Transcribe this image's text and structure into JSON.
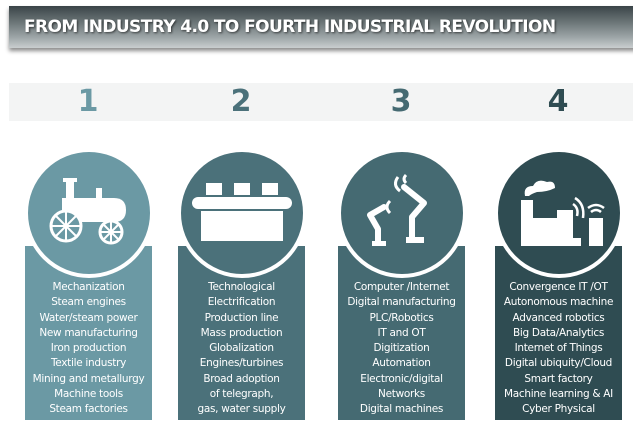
{
  "title": "FROM INDUSTRY 4.0 TO FOURTH INDUSTRIAL REVOLUTION",
  "colors": {
    "stage1": "#6b99a4",
    "stage2": "#4b717a",
    "stage3": "#456a72",
    "stage4": "#2f4c52"
  },
  "stages": [
    {
      "number": "1",
      "icon": "steam-engine-icon",
      "items": [
        "Mechanization",
        "Steam engines",
        "Water/steam power",
        "New manufacturing",
        "Iron production",
        "Textile industry",
        "Mining and metallurgy",
        "Machine tools",
        "Steam factories"
      ]
    },
    {
      "number": "2",
      "icon": "conveyor-belt-icon",
      "items": [
        "Technological",
        "Electrification",
        "Production line",
        "Mass production",
        "Globalization",
        "Engines/turbines",
        "Broad adoption",
        "of telegraph,",
        "gas, water supply"
      ]
    },
    {
      "number": "3",
      "icon": "robotic-arm-icon",
      "items": [
        "Computer /Internet",
        "Digital manufacturing",
        "PLC/Robotics",
        "IT and OT",
        "Digitization",
        "Automation",
        "Electronic/digital",
        "Networks",
        "Digital machines"
      ]
    },
    {
      "number": "4",
      "icon": "smart-factory-icon",
      "items": [
        "Convergence IT /OT",
        "Autonomous machine",
        "Advanced robotics",
        "Big Data/Analytics",
        "Internet of Things",
        "Digital ubiquity/Cloud",
        "Smart factory",
        "Machine learning & AI",
        "Cyber Physical"
      ]
    }
  ]
}
